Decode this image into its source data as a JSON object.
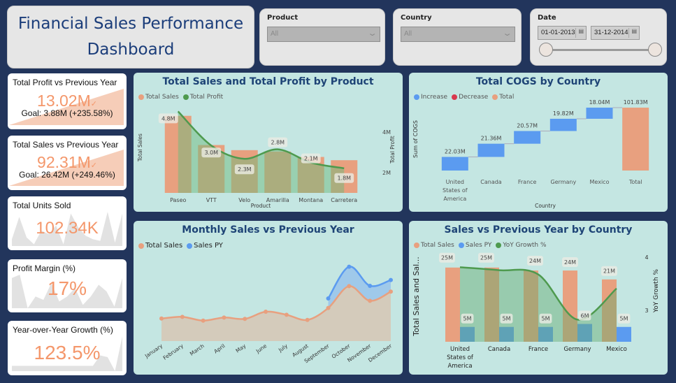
{
  "header": {
    "title_line1": "Financial Sales Performance",
    "title_line2": "Dashboard"
  },
  "filters": {
    "product": {
      "label": "Product",
      "value": "All"
    },
    "country": {
      "label": "Country",
      "value": "All"
    },
    "date": {
      "label": "Date",
      "start": "01-01-2013",
      "end": "31-12-2014",
      "range_fraction": [
        0,
        1
      ]
    }
  },
  "kpis": [
    {
      "title": "Total Profit vs Previous Year",
      "value": "13.02M",
      "goal_text": "Goal: 3.88M (+235.58%)",
      "status_icon": "check-icon"
    },
    {
      "title": "Total Sales vs Previous Year",
      "value": "92.31M",
      "goal_text": "Goal: 26.42M (+249.46%)",
      "status_icon": "check-icon"
    },
    {
      "title": "Total Units Sold",
      "value": "102.34K",
      "sparkline": [
        0.2,
        0.85,
        0.25,
        0.05,
        0.45,
        0.35,
        0.6,
        0.05,
        0.95,
        0.55,
        0.3,
        0.2,
        0.15,
        1.0,
        0.1,
        0.95
      ]
    },
    {
      "title": "Profit Margin (%)",
      "value": "17%",
      "sparkline": [
        0.9,
        1.0,
        0.0,
        0.35,
        0.25,
        0.75,
        0.2,
        0.35,
        0.6,
        0.1,
        0.35,
        0.7,
        0.5,
        0.05,
        0.9
      ]
    },
    {
      "title": "Year-over-Year Growth (%)",
      "value": "123.5%",
      "sparkline": [
        0.15,
        0.15,
        0.15,
        0.15,
        0.15,
        0.15,
        0.15,
        0.15,
        0.15,
        0.15,
        0.15,
        0.15,
        0.45,
        0.4,
        0.0,
        1.0
      ]
    }
  ],
  "colors": {
    "sales": "#e8a07f",
    "profit": "#4e9a4e",
    "increase": "#5b9bf0",
    "decrease": "#d9394e",
    "total": "#e8a07f",
    "sales_py": "#5b9bf0",
    "title": "#1e4476",
    "kpi_value": "#f4976b"
  },
  "chart_data": [
    {
      "id": "sales-profit-by-product",
      "type": "bar",
      "title": "Total Sales and Total Profit by Product",
      "xlabel": "Product",
      "ylabel": "Total Sales",
      "y2label": "Total Profit",
      "legend": [
        "Total Sales",
        "Total Profit"
      ],
      "legend_position": "top-left",
      "categories": [
        "Paseo",
        "VTT",
        "Velo",
        "Amarilla",
        "Montana",
        "Carretera"
      ],
      "series": [
        {
          "name": "Total Sales",
          "type": "bar",
          "axis": "left",
          "values": [
            33.0,
            20.5,
            18.3,
            17.7,
            15.4,
            14.0
          ]
        },
        {
          "name": "Total Profit",
          "type": "line",
          "axis": "right",
          "values": [
            4.8,
            3.0,
            2.3,
            2.8,
            2.1,
            1.8
          ],
          "labels": [
            "4.8M",
            "3.0M",
            "2.3M",
            "2.8M",
            "2.1M",
            "1.8M"
          ]
        }
      ],
      "y2_ticks": [
        "2M",
        "4M"
      ],
      "y2lim": [
        0.5,
        5.0
      ],
      "ylim": [
        0,
        38
      ]
    },
    {
      "id": "cogs-by-country",
      "type": "bar",
      "subtype": "waterfall",
      "title": "Total COGS by Country",
      "xlabel": "Country",
      "ylabel": "Sum of COGS",
      "legend": [
        "Increase",
        "Decrease",
        "Total"
      ],
      "legend_position": "top-left",
      "categories": [
        "United States of America",
        "Canada",
        "France",
        "Germany",
        "Mexico",
        "Total"
      ],
      "values": [
        22.03,
        21.36,
        20.57,
        19.82,
        18.04,
        101.83
      ],
      "labels": [
        "22.03M",
        "21.36M",
        "20.57M",
        "19.82M",
        "18.04M",
        "101.83M"
      ],
      "kinds": [
        "increase",
        "increase",
        "increase",
        "increase",
        "increase",
        "total"
      ]
    },
    {
      "id": "monthly-sales-vs-py",
      "type": "area",
      "title": "Monthly Sales vs Previous Year",
      "legend": [
        "Total Sales",
        "Sales PY"
      ],
      "legend_position": "top-left",
      "categories": [
        "January",
        "February",
        "March",
        "April",
        "May",
        "June",
        "July",
        "August",
        "September",
        "October",
        "November",
        "December"
      ],
      "series": [
        {
          "name": "Total Sales",
          "values": [
            6.6,
            7.1,
            6.0,
            6.9,
            6.5,
            8.6,
            7.7,
            6.2,
            9.7,
            16.1,
            11.8,
            14.5
          ]
        },
        {
          "name": "Sales PY",
          "values": [
            null,
            null,
            null,
            null,
            null,
            null,
            null,
            null,
            12.5,
            21.8,
            16.2,
            17.9
          ]
        }
      ],
      "ylim": [
        0,
        25
      ]
    },
    {
      "id": "sales-vs-py-by-country",
      "type": "bar",
      "title": "Sales vs Previous Year by Country",
      "ylabel": "Total Sales and Sal...",
      "y2label": "YoY Growth %",
      "legend": [
        "Total Sales",
        "Sales PY",
        "YoY Growth %"
      ],
      "legend_position": "top-left",
      "categories": [
        "United States of America",
        "Canada",
        "France",
        "Germany",
        "Mexico"
      ],
      "series": [
        {
          "name": "Total Sales",
          "type": "bar",
          "values": [
            25,
            25,
            24,
            24,
            21
          ],
          "labels": [
            "25M",
            "25M",
            "24M",
            "24M",
            "21M"
          ]
        },
        {
          "name": "Sales PY",
          "type": "bar",
          "values": [
            5,
            5,
            5,
            6,
            5
          ],
          "labels": [
            "5M",
            "5M",
            "5M",
            "6M",
            "5M"
          ]
        },
        {
          "name": "YoY Growth %",
          "type": "line",
          "axis": "right",
          "values": [
            3.95,
            3.88,
            3.78,
            2.72,
            3.45
          ]
        }
      ],
      "y2_ticks": [
        "3",
        "4"
      ],
      "y2lim": [
        2.2,
        4.3
      ],
      "ylim": [
        0,
        30
      ]
    }
  ]
}
